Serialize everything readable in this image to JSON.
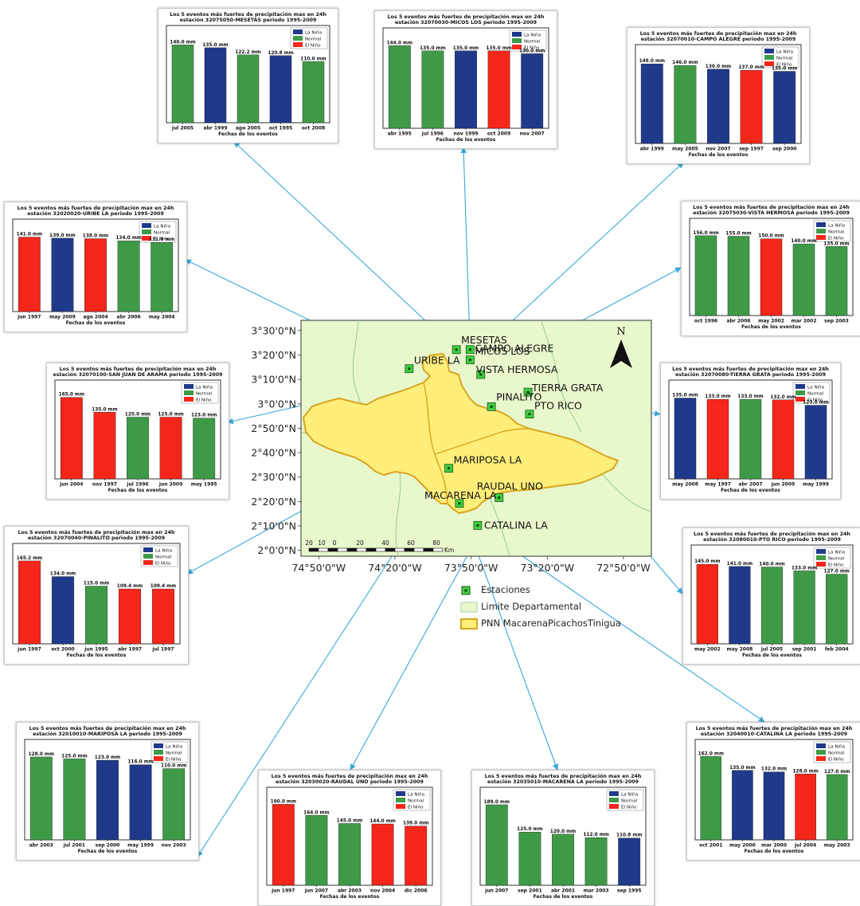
{
  "chart_data": [
    {
      "id": "mesetas",
      "type": "bar",
      "title": "Los 5 eventos más fuertes de precipitación max en 24h",
      "subtitle": "estación 32075050-MESETAS periodo 1995-2009",
      "xlabel": "Fechas de los eventos",
      "categories": [
        "jul 2005",
        "abr 1999",
        "ago 2005",
        "oct 1995",
        "oct 2008"
      ],
      "values": [
        140.0,
        135.0,
        122.2,
        120.8,
        110.0
      ],
      "labels": [
        "140.0 mm",
        "135.0 mm",
        "122.2 mm",
        "120.8 mm",
        "110.0 mm"
      ],
      "phases": [
        "Normal",
        "La Niña",
        "Normal",
        "La Niña",
        "Normal"
      ],
      "ylim": [
        0,
        175
      ],
      "legend": [
        "La Niña",
        "Normal",
        "El Niño"
      ],
      "legend_position": "top-right"
    },
    {
      "id": "micos",
      "type": "bar",
      "title": "Los 5 eventos más fuertes de precipitación max en 24h",
      "subtitle": "estación 32070030-MICOS LOS periodo 1995-2009",
      "xlabel": "Fechas de los eventos",
      "categories": [
        "abr 1995",
        "jul 1996",
        "nov 1999",
        "oct 2009",
        "nov 2007"
      ],
      "values": [
        144.0,
        135.0,
        135.0,
        135.0,
        130.0
      ],
      "labels": [
        "144.0 mm",
        "135.0 mm",
        "135.0 mm",
        "135.0 mm",
        "130.0 mm"
      ],
      "phases": [
        "Normal",
        "Normal",
        "La Niña",
        "El Niño",
        "La Niña"
      ],
      "ylim": [
        0,
        175
      ],
      "legend": [
        "La Niña",
        "Normal",
        "El Niño"
      ],
      "legend_position": "top-right"
    },
    {
      "id": "campo",
      "type": "bar",
      "title": "Los 5 eventos más fuertes de precipitación max en 24h",
      "subtitle": "estación 32070010-CAMPO ALEGRE periodo 1995-2009",
      "xlabel": "Fechas de los eventos",
      "categories": [
        "abr 1999",
        "may 2005",
        "nov 2007",
        "sep 1997",
        "sep 2000"
      ],
      "values": [
        149.0,
        146.0,
        139.0,
        137.0,
        135.0
      ],
      "labels": [
        "149.0 mm",
        "146.0 mm",
        "139.0 mm",
        "137.0 mm",
        "135.0 mm"
      ],
      "phases": [
        "La Niña",
        "Normal",
        "La Niña",
        "El Niño",
        "La Niña"
      ],
      "ylim": [
        0,
        185
      ],
      "legend": [
        "La Niña",
        "Normal",
        "El Niño"
      ],
      "legend_position": "top-right"
    },
    {
      "id": "uribe",
      "type": "bar",
      "title": "Los 5 eventos más fuertes de precipitación max en 24h",
      "subtitle": "estación 32020020-URIBE LA periodo 1995-2009",
      "xlabel": "Fechas de los eventos",
      "categories": [
        "jun 1997",
        "may 2009",
        "ago 2004",
        "abr 2006",
        "may 2004"
      ],
      "values": [
        141.0,
        139.0,
        138.0,
        134.0,
        131.0
      ],
      "labels": [
        "141.0 mm",
        "139.0 mm",
        "138.0 mm",
        "134.0 mm",
        "131.0 mm"
      ],
      "phases": [
        "El Niño",
        "La Niña",
        "El Niño",
        "Normal",
        "Normal"
      ],
      "ylim": [
        0,
        175
      ],
      "legend": [
        "La Niña",
        "Normal",
        "El Niño"
      ],
      "legend_position": "top-right"
    },
    {
      "id": "vista",
      "type": "bar",
      "title": "Los 5 eventos más fuertes de precipitación max en 24h",
      "subtitle": "estación 32075030-VISTA HERMOSA periodo 1995-2009",
      "xlabel": "Fechas de los eventos",
      "categories": [
        "oct 1996",
        "abr 2006",
        "may 2002",
        "mar 2002",
        "sep 2003"
      ],
      "values": [
        156.0,
        155.0,
        150.0,
        140.0,
        135.0
      ],
      "labels": [
        "156.0 mm",
        "155.0 mm",
        "150.0 mm",
        "140.0 mm",
        "135.0 mm"
      ],
      "phases": [
        "Normal",
        "Normal",
        "El Niño",
        "Normal",
        "Normal"
      ],
      "ylim": [
        0,
        190
      ],
      "legend": [
        "La Niña",
        "Normal",
        "El Niño"
      ],
      "legend_position": "top-right"
    },
    {
      "id": "sanjuan",
      "type": "bar",
      "title": "Los 5 eventos más fuertes de precipitación max en 24h",
      "subtitle": "estación 32070100-SAN JUAN DE ARAMA periodo 1995-2009",
      "xlabel": "Fechas de los eventos",
      "categories": [
        "jun 2004",
        "nov 1997",
        "jul 1996",
        "jun 2009",
        "may 1995"
      ],
      "values": [
        165.0,
        135.0,
        125.0,
        125.0,
        123.0
      ],
      "labels": [
        "165.0 mm",
        "135.0 mm",
        "125.0 mm",
        "125.0 mm",
        "123.0 mm"
      ],
      "phases": [
        "El Niño",
        "El Niño",
        "Normal",
        "El Niño",
        "Normal"
      ],
      "ylim": [
        0,
        200
      ],
      "legend": [
        "La Niña",
        "Normal",
        "El Niño"
      ],
      "legend_position": "top-right"
    },
    {
      "id": "tierra",
      "type": "bar",
      "title": "Los 5 eventos más fuertes de precipitación max en 24h",
      "subtitle": "estación 32070080-TIERRA GRATA periodo 1995-2009",
      "xlabel": "Fechas de los eventos",
      "categories": [
        "may 2008",
        "may 1997",
        "abr 2007",
        "jun 2009",
        "may 1999"
      ],
      "values": [
        135.0,
        133.0,
        133.0,
        132.0,
        123.0
      ],
      "labels": [
        "135.0 mm",
        "133.0 mm",
        "133.0 mm",
        "132.0 mm",
        "123.0 mm"
      ],
      "phases": [
        "La Niña",
        "El Niño",
        "Normal",
        "El Niño",
        "La Niña"
      ],
      "ylim": [
        0,
        165
      ],
      "legend": [
        "La Niña",
        "Normal",
        "El Niño"
      ],
      "legend_position": "top-right"
    },
    {
      "id": "pinalito",
      "type": "bar",
      "title": "Los 5 eventos más fuertes de precipitación max en 24h",
      "subtitle": "estación 32070040-PINALITO periodo 1995-2009",
      "xlabel": "Fechas de los eventos",
      "categories": [
        "jun 1997",
        "oct 2000",
        "jun 1995",
        "abr 1997",
        "jul 1997"
      ],
      "values": [
        165.2,
        134.0,
        115.0,
        109.4,
        109.4
      ],
      "labels": [
        "165.2 mm",
        "134.0 mm",
        "115.0 mm",
        "109.4 mm",
        "109.4 mm"
      ],
      "phases": [
        "El Niño",
        "La Niña",
        "Normal",
        "El Niño",
        "El Niño"
      ],
      "ylim": [
        0,
        200
      ],
      "legend": [
        "La Niña",
        "Normal",
        "El Niño"
      ],
      "legend_position": "top-right"
    },
    {
      "id": "ptorico",
      "type": "bar",
      "title": "Los 5 eventos más fuertes de precipitación max en 24h",
      "subtitle": "estación 32080010-PTO RICO periodo 1995-2009",
      "xlabel": "Fechas de los eventos",
      "categories": [
        "may 2002",
        "may 2008",
        "jul 2005",
        "sep 2001",
        "feb 2004"
      ],
      "values": [
        145.0,
        141.0,
        140.0,
        133.0,
        127.0
      ],
      "labels": [
        "145.0 mm",
        "141.0 mm",
        "140.0 mm",
        "133.0 mm",
        "127.0 mm"
      ],
      "phases": [
        "El Niño",
        "La Niña",
        "Normal",
        "Normal",
        "Normal"
      ],
      "ylim": [
        0,
        180
      ],
      "legend": [
        "La Niña",
        "Normal",
        "El Niño"
      ],
      "legend_position": "top-right"
    },
    {
      "id": "mariposa",
      "type": "bar",
      "title": "Los 5 eventos más fuertes de precipitación max en 24h",
      "subtitle": "estación 32010010-MARIPOSA LA periodo 1995-2009",
      "xlabel": "Fechas de los eventos",
      "categories": [
        "abr 2003",
        "jul 2001",
        "sep 2000",
        "may 1999",
        "nov 2003"
      ],
      "values": [
        128.0,
        125.0,
        123.0,
        116.0,
        110.0
      ],
      "labels": [
        "128.0 mm",
        "125.0 mm",
        "123.0 mm",
        "116.0 mm",
        "110.0 mm"
      ],
      "phases": [
        "Normal",
        "Normal",
        "La Niña",
        "La Niña",
        "Normal"
      ],
      "ylim": [
        0,
        155
      ],
      "legend": [
        "La Niña",
        "Normal",
        "El Niño"
      ],
      "legend_position": "top-right"
    },
    {
      "id": "raudal",
      "type": "bar",
      "title": "Los 5 eventos más fuertes de precipitación max en 24h",
      "subtitle": "estación 32030020-RAUDAL UNO periodo 1995-2009",
      "xlabel": "Fechas de los eventos",
      "categories": [
        "jun 1997",
        "jun 2007",
        "abr 2003",
        "nov 2004",
        "dic 2006"
      ],
      "values": [
        190.0,
        164.0,
        145.0,
        144.0,
        139.0
      ],
      "labels": [
        "190.0 mm",
        "164.0 mm",
        "145.0 mm",
        "144.0 mm",
        "139.0 mm"
      ],
      "phases": [
        "El Niño",
        "Normal",
        "Normal",
        "El Niño",
        "El Niño"
      ],
      "ylim": [
        0,
        230
      ],
      "legend": [
        "La Niña",
        "Normal",
        "El Niño"
      ],
      "legend_position": "top-right"
    },
    {
      "id": "macarena",
      "type": "bar",
      "title": "Los 5 eventos más fuertes de precipitación max en 24h",
      "subtitle": "estación 32035010-MACARENA LA periodo 1995-2009",
      "xlabel": "Fechas de los eventos",
      "categories": [
        "jun 2007",
        "sep 2001",
        "abr 2001",
        "mar 2003",
        "sep 1995"
      ],
      "values": [
        189.0,
        125.0,
        120.0,
        112.0,
        110.8
      ],
      "labels": [
        "189.0 mm",
        "125.0 mm",
        "120.0 mm",
        "112.0 mm",
        "110.8 mm"
      ],
      "phases": [
        "Normal",
        "Normal",
        "Normal",
        "Normal",
        "La Niña"
      ],
      "ylim": [
        0,
        230
      ],
      "legend": [
        "La Niña",
        "Normal",
        "El Niño"
      ],
      "legend_position": "top-right"
    },
    {
      "id": "catalina",
      "type": "bar",
      "title": "Los 5 eventos más fuertes de precipitación max en 24h",
      "subtitle": "estación 32040010-CATALINA LA periodo 1995-2009",
      "xlabel": "Fechas de los eventos",
      "categories": [
        "oct 2001",
        "may 2000",
        "mar 2000",
        "jul 2004",
        "may 2003"
      ],
      "values": [
        162.0,
        135.0,
        132.0,
        128.0,
        127.0
      ],
      "labels": [
        "162.0 mm",
        "135.0 mm",
        "132.0 mm",
        "128.0 mm",
        "127.0 mm"
      ],
      "phases": [
        "Normal",
        "La Niña",
        "La Niña",
        "El Niño",
        "Normal"
      ],
      "ylim": [
        0,
        195
      ],
      "legend": [
        "La Niña",
        "Normal",
        "El Niño"
      ],
      "legend_position": "top-right"
    }
  ],
  "phase_colors": {
    "La Niña": "#1f3a8a",
    "Normal": "#3f9a48",
    "El Niño": "#f5261a"
  },
  "map": {
    "lat_ticks": [
      "3°30'0\"N",
      "3°20'0\"N",
      "3°10'0\"N",
      "3°0'0\"N",
      "2°50'0\"N",
      "2°40'0\"N",
      "2°30'0\"N",
      "2°20'0\"N",
      "2°10'0\"N",
      "2°0'0\"N"
    ],
    "lon_ticks": [
      "74°50'0\"W",
      "74°20'0\"W",
      "73°50'0\"W",
      "73°20'0\"W",
      "72°50'0\"W"
    ],
    "north_label": "N",
    "scale_labels": [
      "20",
      "10",
      "0",
      "20",
      "40",
      "60",
      "80"
    ],
    "scale_unit": "Km",
    "stations": [
      {
        "name": "MESETAS",
        "lat": 3.37,
        "lon": -73.93
      },
      {
        "name": "MICOS LOS",
        "lat": 3.37,
        "lon": -73.84
      },
      {
        "name": "URIBE LA",
        "lat": 3.24,
        "lon": -74.24
      },
      {
        "name": "CAMPO ALEGRE",
        "lat": 3.3,
        "lon": -73.84
      },
      {
        "name": "VISTA HERMOSA",
        "lat": 3.2,
        "lon": -73.77
      },
      {
        "name": "TIERRA GRATA",
        "lat": 3.08,
        "lon": -73.46
      },
      {
        "name": "PINALITO",
        "lat": 2.98,
        "lon": -73.7
      },
      {
        "name": "PTO RICO",
        "lat": 2.93,
        "lon": -73.45
      },
      {
        "name": "MARIPOSA LA",
        "lat": 2.56,
        "lon": -73.98
      },
      {
        "name": "RAUDAL UNO",
        "lat": 2.36,
        "lon": -73.65
      },
      {
        "name": "MACARENA LA",
        "lat": 2.32,
        "lon": -73.91
      },
      {
        "name": "CATALINA LA",
        "lat": 2.17,
        "lon": -73.79
      }
    ]
  },
  "legend": {
    "stations": "Estaciones",
    "limit": "Limite Departamental",
    "park": "PNN MacarenaPicachosTinigua"
  }
}
